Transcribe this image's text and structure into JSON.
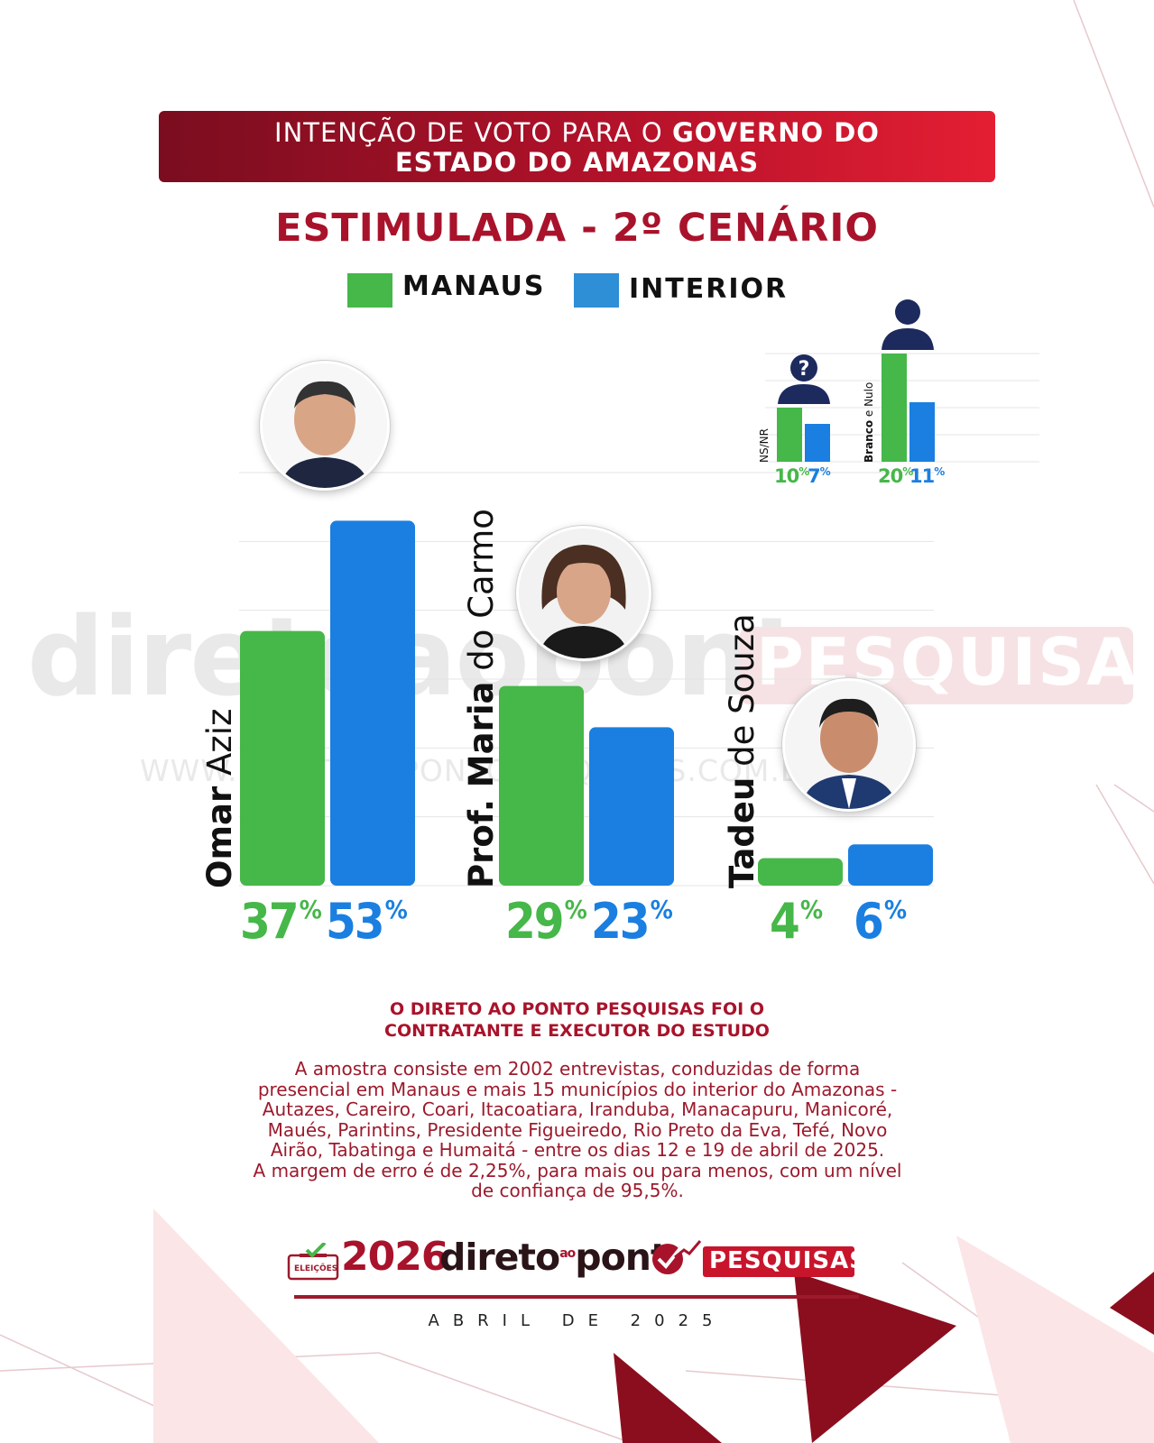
{
  "header": {
    "title_regular": "INTENÇÃO DE VOTO PARA O ",
    "title_bold_line1": "GOVERNO DO",
    "title_bold_line2": "ESTADO DO AMAZONAS",
    "subtitle": "ESTIMULADA - 2º CENÁRIO"
  },
  "colors": {
    "manaus": "#46b749",
    "interior": "#1a7fe0",
    "brand_red": "#a8132b"
  },
  "chart_data": [
    {
      "type": "bar",
      "categories": [
        "Omar Aziz",
        "Prof. Maria do Carmo",
        "Tadeu de Souza"
      ],
      "series": [
        {
          "name": "MANAUS",
          "values": [
            37,
            29,
            4
          ]
        },
        {
          "name": "INTERIOR",
          "values": [
            53,
            23,
            6
          ]
        }
      ],
      "ylim": [
        0,
        60
      ],
      "grid": true,
      "legend": "top-center",
      "candidates": [
        {
          "name_bold": "Omar",
          "name_light": " Aziz",
          "manaus": "37",
          "interior": "53"
        },
        {
          "name_bold": "Prof. Maria",
          "name_light": " do Carmo",
          "manaus": "29",
          "interior": "23"
        },
        {
          "name_bold": "Tadeu",
          "name_light": " de Souza",
          "manaus": "4",
          "interior": "6"
        }
      ],
      "percent_sign": "%"
    },
    {
      "type": "bar",
      "categories": [
        "NS/NR",
        "Branco e Nulo"
      ],
      "series": [
        {
          "name": "MANAUS",
          "values": [
            10,
            20
          ]
        },
        {
          "name": "INTERIOR",
          "values": [
            7,
            11
          ]
        }
      ],
      "ylim": [
        0,
        20
      ],
      "grid": true,
      "labels": [
        {
          "name": "NS/NR",
          "manaus": "10",
          "interior": "7"
        },
        {
          "name_bold": "Branco",
          "name_light": " e Nulo",
          "manaus": "20",
          "interior": "11"
        }
      ]
    }
  ],
  "legend": {
    "manaus": "MANAUS",
    "interior": "INTERIOR"
  },
  "watermark": {
    "brand": "diretoaoponto",
    "pesquisas": "PESQUISAS",
    "url": "WWW.DIRETOAOPONTOPESQUISAS.COM.BR"
  },
  "note": {
    "title_line1": "O DIRETO AO PONTO PESQUISAS FOI O",
    "title_line2": "CONTRATANTE E EXECUTOR DO ESTUDO",
    "lines": [
      "A amostra consiste em 2002 entrevistas, conduzidas de forma",
      "presencial em Manaus e mais 15 municípios do interior do Amazonas -",
      "Autazes, Careiro, Coari, Itacoatiara, Iranduba, Manacapuru, Manicoré,",
      "Maués, Parintins, Presidente Figueiredo, Rio Preto da Eva, Tefé, Novo",
      "Airão, Tabatinga e Humaitá - entre os dias 12 e 19 de abril de 2025.",
      "A margem de erro é de 2,25%, para mais ou para menos, com um nível",
      "de confiança de 95,5%."
    ]
  },
  "footer": {
    "badge": "ELEIÇÕES",
    "year": "2026",
    "brand_a": "direto",
    "brand_ao": "ao",
    "brand_b": "pont",
    "pesquisas": "PESQUISAS",
    "date": "ABRIL DE 2025"
  }
}
